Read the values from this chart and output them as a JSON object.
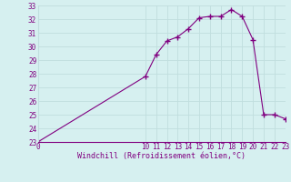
{
  "x": [
    0,
    10,
    11,
    12,
    13,
    14,
    15,
    16,
    17,
    18,
    19,
    20,
    21,
    22,
    23
  ],
  "y": [
    23.0,
    27.8,
    29.4,
    30.4,
    30.7,
    31.3,
    32.1,
    32.2,
    32.2,
    32.7,
    32.2,
    30.5,
    25.0,
    25.0,
    24.7
  ],
  "title": "Windchill (Refroidissement éolien,°C)",
  "xlim": [
    0,
    23
  ],
  "ylim": [
    23,
    33
  ],
  "xticks": [
    0,
    10,
    11,
    12,
    13,
    14,
    15,
    16,
    17,
    18,
    19,
    20,
    21,
    22,
    23
  ],
  "yticks": [
    23,
    24,
    25,
    26,
    27,
    28,
    29,
    30,
    31,
    32,
    33
  ],
  "line_color": "#800080",
  "marker_color": "#800080",
  "bg_color": "#d6f0f0",
  "grid_color": "#c0dede",
  "font_color": "#800080"
}
